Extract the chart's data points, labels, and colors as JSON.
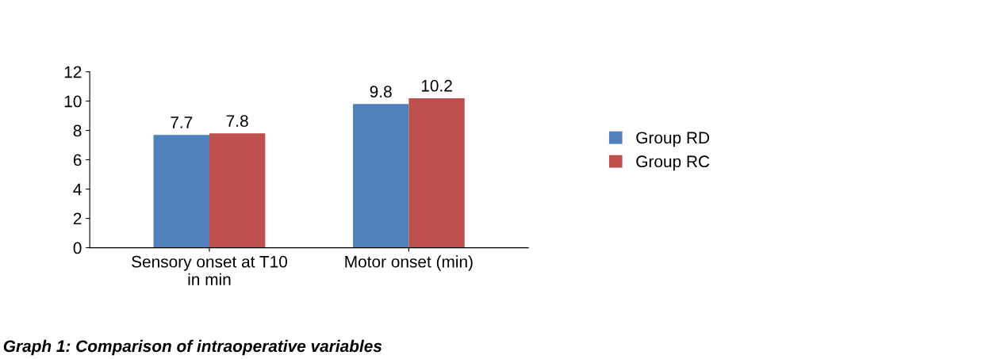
{
  "chart_data": {
    "type": "bar",
    "categories": [
      "Sensory onset at T10\nin min",
      "Motor onset (min)"
    ],
    "series": [
      {
        "name": "Group RD",
        "color": "#4f81bd",
        "values": [
          7.7,
          9.8
        ]
      },
      {
        "name": "Group RC",
        "color": "#c0504d",
        "values": [
          7.8,
          10.2
        ]
      }
    ],
    "ylim": [
      0,
      12
    ],
    "yticks": [
      0,
      2,
      4,
      6,
      8,
      10,
      12
    ],
    "grid": false,
    "legend": "right",
    "data_labels": true,
    "annotations": [
      "Graph 1: Comparison of intraoperative variables"
    ]
  }
}
